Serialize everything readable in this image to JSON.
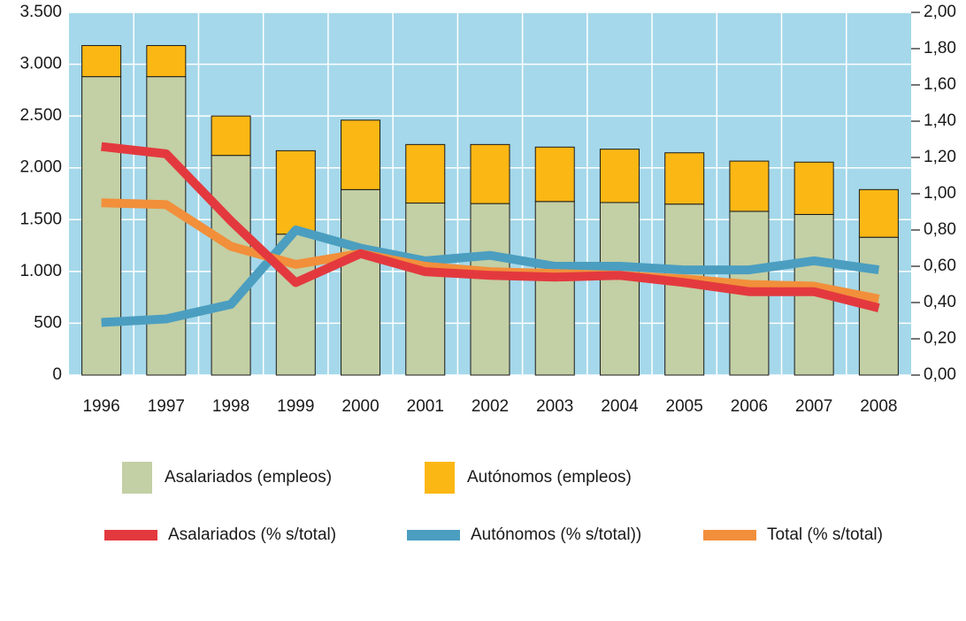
{
  "chart_data": {
    "type": "bar",
    "categories": [
      "1996",
      "1997",
      "1998",
      "1999",
      "2000",
      "2001",
      "2002",
      "2003",
      "2004",
      "2005",
      "2006",
      "2007",
      "2008"
    ],
    "series": [
      {
        "name": "Asalariados (empleos)",
        "type": "bar",
        "color": "#c3cfa4",
        "values": [
          2880,
          2880,
          2120,
          1360,
          1790,
          1660,
          1655,
          1675,
          1665,
          1650,
          1580,
          1550,
          1330
        ]
      },
      {
        "name": "Autónomos (empleos)",
        "type": "bar",
        "color": "#fbb714",
        "values": [
          300,
          300,
          380,
          805,
          670,
          565,
          570,
          525,
          515,
          495,
          485,
          505,
          460
        ]
      },
      {
        "name": "Asalariados (% s/total)",
        "type": "line",
        "axis": "y2",
        "color": "#e3393e",
        "values": [
          1.26,
          1.22,
          0.85,
          0.51,
          0.67,
          0.57,
          0.55,
          0.54,
          0.55,
          0.51,
          0.46,
          0.46,
          0.37
        ]
      },
      {
        "name": "Autónomos (% s/total))",
        "type": "line",
        "axis": "y2",
        "color": "#4b9ec0",
        "values": [
          0.29,
          0.31,
          0.39,
          0.8,
          0.7,
          0.63,
          0.66,
          0.6,
          0.6,
          0.58,
          0.58,
          0.63,
          0.58
        ]
      },
      {
        "name": "Total (% s/total)",
        "type": "line",
        "axis": "y2",
        "color": "#f28f3b",
        "values": [
          0.95,
          0.94,
          0.71,
          0.61,
          0.67,
          0.6,
          0.57,
          0.56,
          0.55,
          0.53,
          0.5,
          0.49,
          0.42
        ]
      }
    ],
    "ylim": [
      0,
      3500
    ],
    "yticks": [
      0,
      {
        "value": 500,
        "label": "500"
      },
      {
        "value": 1000,
        "label": "1.000"
      },
      {
        "value": 1500,
        "label": "1.500"
      },
      {
        "value": 2000,
        "label": "2.000"
      },
      {
        "value": 2500,
        "label": "2.500"
      },
      {
        "value": 3000,
        "label": "3.000"
      },
      {
        "value": 3500,
        "label": "3.500"
      }
    ],
    "y2lim": [
      0,
      2
    ],
    "y2ticks": [
      {
        "value": 0,
        "label": "0,00"
      },
      {
        "value": 0.2,
        "label": "0,20"
      },
      {
        "value": 0.4,
        "label": "0,40"
      },
      {
        "value": 0.6,
        "label": "0,60"
      },
      {
        "value": 0.8,
        "label": "0,80"
      },
      {
        "value": 1,
        "label": "1,00"
      },
      {
        "value": 1.2,
        "label": "1,20"
      },
      {
        "value": 1.4,
        "label": "1,40"
      },
      {
        "value": 1.6,
        "label": "1,60"
      },
      {
        "value": 1.8,
        "label": "1,80"
      },
      {
        "value": 2,
        "label": "2,00"
      }
    ],
    "grid": true,
    "background": "#a5d8ea"
  }
}
